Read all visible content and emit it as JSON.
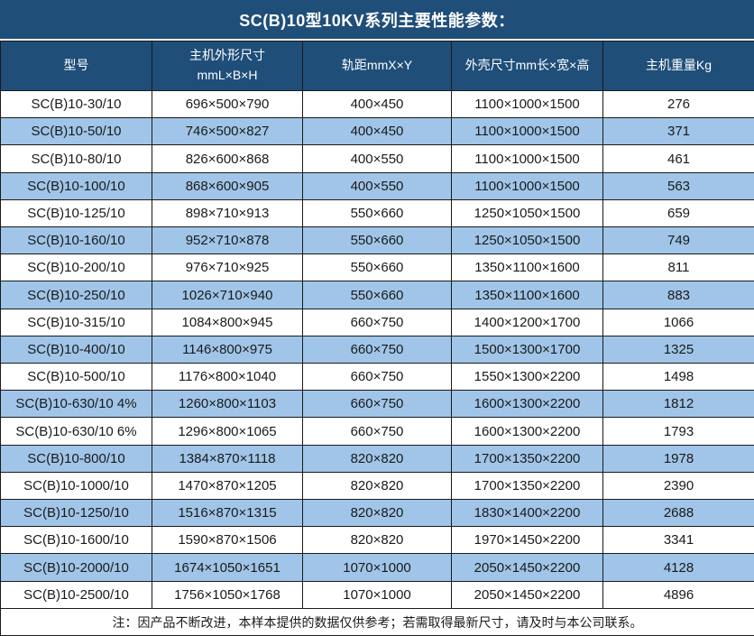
{
  "title": "SC(B)10型10KV系列主要性能参数：",
  "note": "注：因产品不断改进，本样本提供的数据仅供参考；若需取得最新尺寸，请及时与本公司联系。",
  "colors": {
    "header_bg": "#1f4e79",
    "header_text": "#ffffff",
    "stripe_bg": "#a0c5e8",
    "row_bg": "#ffffff",
    "border": "#1a1a1a",
    "body_text": "#1a1a1a"
  },
  "table": {
    "headers": [
      {
        "label": "型号"
      },
      {
        "line1": "主机外形尺寸",
        "line2": "mmL×B×H"
      },
      {
        "label": "轨距mmX×Y"
      },
      {
        "label": "外壳尺寸mm长×宽×高"
      },
      {
        "label": "主机重量Kg"
      }
    ],
    "rows": [
      [
        "SC(B)10-30/10",
        "696×500×790",
        "400×450",
        "1100×1000×1500",
        "276"
      ],
      [
        "SC(B)10-50/10",
        "746×500×827",
        "400×450",
        "1100×1000×1500",
        "371"
      ],
      [
        "SC(B)10-80/10",
        "826×600×868",
        "400×550",
        "1100×1000×1500",
        "461"
      ],
      [
        "SC(B)10-100/10",
        "868×600×905",
        "400×550",
        "1100×1000×1500",
        "563"
      ],
      [
        "SC(B)10-125/10",
        "898×710×913",
        "550×660",
        "1250×1050×1500",
        "659"
      ],
      [
        "SC(B)10-160/10",
        "952×710×878",
        "550×660",
        "1250×1050×1500",
        "749"
      ],
      [
        "SC(B)10-200/10",
        "976×710×925",
        "550×660",
        "1350×1100×1600",
        "811"
      ],
      [
        "SC(B)10-250/10",
        "1026×710×940",
        "550×660",
        "1350×1100×1600",
        "883"
      ],
      [
        "SC(B)10-315/10",
        "1084×800×945",
        "660×750",
        "1400×1200×1700",
        "1066"
      ],
      [
        "SC(B)10-400/10",
        "1146×800×975",
        "660×750",
        "1500×1300×1700",
        "1325"
      ],
      [
        "SC(B)10-500/10",
        "1176×800×1040",
        "660×750",
        "1550×1300×2200",
        "1498"
      ],
      [
        "SC(B)10-630/10 4%",
        "1260×800×1103",
        "660×750",
        "1600×1300×2200",
        "1812"
      ],
      [
        "SC(B)10-630/10 6%",
        "1296×800×1065",
        "660×750",
        "1600×1300×2200",
        "1793"
      ],
      [
        "SC(B)10-800/10",
        "1384×870×1118",
        "820×820",
        "1700×1350×2200",
        "1978"
      ],
      [
        "SC(B)10-1000/10",
        "1470×870×1205",
        "820×820",
        "1700×1350×2200",
        "2390"
      ],
      [
        "SC(B)10-1250/10",
        "1516×870×1315",
        "820×820",
        "1830×1400×2200",
        "2688"
      ],
      [
        "SC(B)10-1600/10",
        "1590×870×1506",
        "820×820",
        "1970×1450×2200",
        "3341"
      ],
      [
        "SC(B)10-2000/10",
        "1674×1050×1651",
        "1070×1000",
        "2050×1450×2200",
        "4128"
      ],
      [
        "SC(B)10-2500/10",
        "1756×1050×1768",
        "1070×1000",
        "2050×1450×2200",
        "4896"
      ]
    ]
  }
}
